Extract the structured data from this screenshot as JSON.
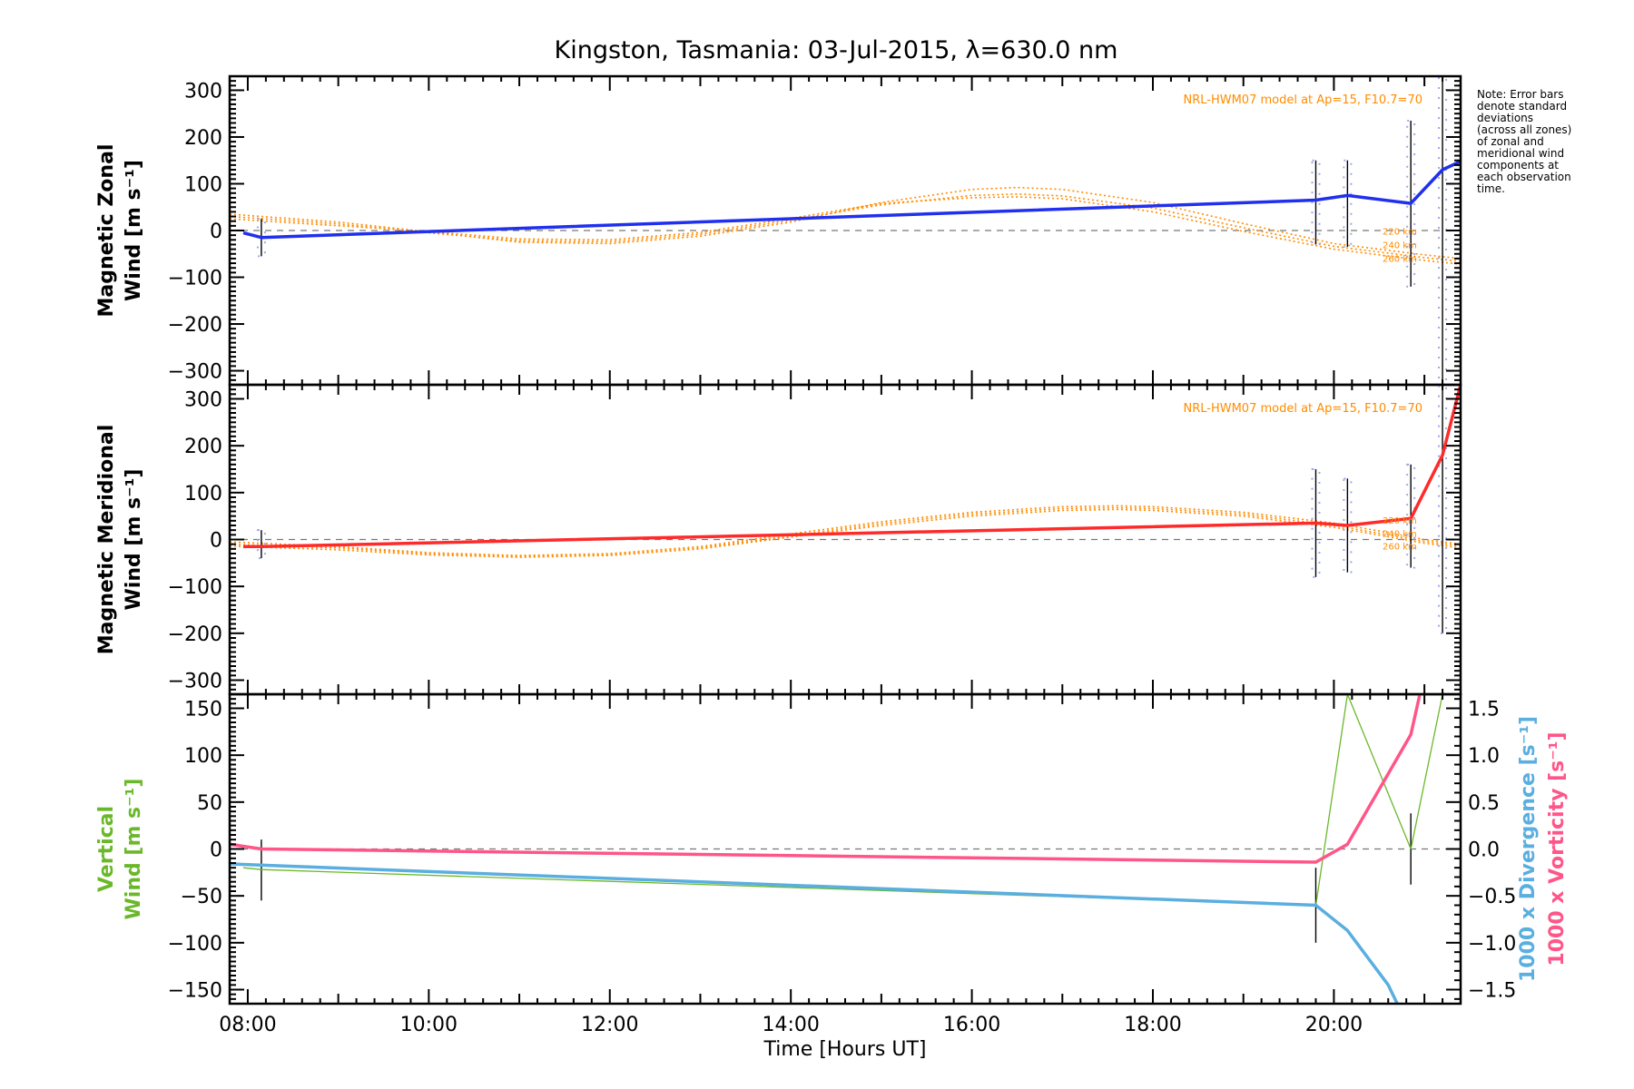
{
  "title": "Kingston, Tasmania: 03-Jul-2015, λ=630.0 nm",
  "note": [
    "Note: Error bars",
    "denote standard",
    "deviations",
    "(across all zones)",
    "of zonal and",
    "meridional wind",
    "components at",
    "each observation",
    "time."
  ],
  "model_label": "NRL-HWM07 model at Ap=15, F10.7=70",
  "altitudes": [
    "220 km",
    "240 km",
    "260 km"
  ],
  "colors": {
    "zonal": "#2030ee",
    "meridional": "#ff2a2a",
    "model": "#ff8c00",
    "vertical": "#6ab82a",
    "divergence": "#5aaee0",
    "vorticity": "#ff5588",
    "errorbar": "#000000",
    "zone_points": "#a0a8e8"
  },
  "chart_data": [
    {
      "type": "line",
      "panel": "zonal",
      "ylabel_lines": [
        "Magnetic Zonal",
        "Wind [m s⁻¹]"
      ],
      "xlim": [
        7.8,
        21.4
      ],
      "ylim": [
        -330,
        330
      ],
      "yticks": [
        -300,
        -200,
        -100,
        0,
        100,
        200,
        300
      ],
      "x": [
        7.95,
        8.15,
        19.8,
        20.15,
        20.85,
        21.2,
        21.4
      ],
      "series": [
        {
          "values": [
            -5,
            -15,
            65,
            75,
            58,
            130,
            148
          ]
        }
      ],
      "errorbars": [
        {
          "x": 8.15,
          "lo": -55,
          "hi": 25
        },
        {
          "x": 19.8,
          "lo": -30,
          "hi": 150
        },
        {
          "x": 20.15,
          "lo": -35,
          "hi": 150
        },
        {
          "x": 20.85,
          "lo": -120,
          "hi": 235
        },
        {
          "x": 21.2,
          "lo": -330,
          "hi": 330
        }
      ],
      "model_curves": {
        "x": [
          7.8,
          9.0,
          10.0,
          11.0,
          12.0,
          13.0,
          14.0,
          15.0,
          16.0,
          16.5,
          17.0,
          18.0,
          19.0,
          20.0,
          21.0,
          21.4
        ],
        "altitudes": [
          [
            35,
            18,
            -3,
            -25,
            -28,
            -12,
            18,
            60,
            88,
            92,
            88,
            60,
            15,
            -28,
            -52,
            -60
          ],
          [
            30,
            14,
            -5,
            -22,
            -24,
            -8,
            22,
            55,
            75,
            78,
            74,
            48,
            6,
            -34,
            -58,
            -66
          ],
          [
            25,
            10,
            -2,
            -18,
            -20,
            -4,
            26,
            58,
            70,
            72,
            68,
            40,
            -2,
            -40,
            -64,
            -72
          ]
        ]
      }
    },
    {
      "type": "line",
      "panel": "meridional",
      "ylabel_lines": [
        "Magnetic Meridional",
        "Wind [m s⁻¹]"
      ],
      "xlim": [
        7.8,
        21.4
      ],
      "ylim": [
        -330,
        330
      ],
      "yticks": [
        -300,
        -200,
        -100,
        0,
        100,
        200,
        300
      ],
      "x": [
        7.95,
        8.15,
        19.8,
        20.15,
        20.85,
        21.2,
        21.4
      ],
      "series": [
        {
          "values": [
            -15,
            -15,
            35,
            30,
            45,
            180,
            330
          ]
        }
      ],
      "errorbars": [
        {
          "x": 8.15,
          "lo": -40,
          "hi": 20
        },
        {
          "x": 19.8,
          "lo": -80,
          "hi": 150
        },
        {
          "x": 20.15,
          "lo": -70,
          "hi": 130
        },
        {
          "x": 20.85,
          "lo": -60,
          "hi": 160
        },
        {
          "x": 21.2,
          "lo": -200,
          "hi": 330
        }
      ],
      "model_curves": {
        "x": [
          7.8,
          9.0,
          10.0,
          11.0,
          12.0,
          13.0,
          14.0,
          15.0,
          16.0,
          17.0,
          17.6,
          18.0,
          19.0,
          20.0,
          20.6,
          21.0,
          21.4
        ],
        "altitudes": [
          [
            -5,
            -15,
            -28,
            -34,
            -30,
            -15,
            12,
            38,
            58,
            70,
            72,
            70,
            58,
            35,
            15,
            0,
            -10
          ],
          [
            -10,
            -18,
            -30,
            -36,
            -32,
            -18,
            8,
            34,
            54,
            66,
            68,
            66,
            54,
            30,
            10,
            -4,
            -14
          ],
          [
            -14,
            -22,
            -33,
            -38,
            -34,
            -20,
            5,
            30,
            50,
            62,
            64,
            62,
            50,
            26,
            6,
            -8,
            -18
          ]
        ]
      }
    },
    {
      "type": "line",
      "panel": "vertical",
      "ylabel_lines": [
        "Vertical",
        "Wind [m s⁻¹]"
      ],
      "y2label_lines": [
        "1000 x Divergence [s⁻¹]",
        "1000 x Vorticity [s⁻¹]"
      ],
      "xlabel": "Time [Hours UT]",
      "xlim": [
        7.8,
        21.4
      ],
      "ylim": [
        -165,
        165
      ],
      "y2lim": [
        -1.65,
        1.65
      ],
      "yticks": [
        -150,
        -100,
        -50,
        0,
        50,
        100,
        150
      ],
      "y2ticks": [
        -1.5,
        -1.0,
        -0.5,
        0.0,
        0.5,
        1.0,
        1.5
      ],
      "y2ticklabels": [
        "−1.5",
        "−1.0",
        "−0.5",
        "0.0",
        "0.5",
        "1.0",
        "1.5"
      ],
      "xticks": [
        8,
        10,
        12,
        14,
        16,
        18,
        20
      ],
      "xticklabels": [
        "08:00",
        "10:00",
        "12:00",
        "14:00",
        "16:00",
        "18:00",
        "20:00"
      ],
      "x": [
        7.95,
        8.15,
        19.8,
        20.15,
        20.85,
        21.2
      ],
      "series": [
        {
          "name": "Vertical Wind",
          "axis": "left",
          "values": [
            -20,
            -22,
            -60,
            165,
            0,
            165
          ]
        },
        {
          "name": "1000 x Divergence",
          "axis": "right",
          "x": [
            7.8,
            19.8,
            20.15,
            20.6,
            20.7
          ],
          "values": [
            -0.16,
            -0.6,
            -0.87,
            -1.45,
            -1.65
          ]
        },
        {
          "name": "1000 x Vorticity",
          "axis": "right",
          "x": [
            7.8,
            8.15,
            19.8,
            20.15,
            20.85,
            20.95
          ],
          "values": [
            0.05,
            0.0,
            -0.14,
            0.05,
            1.22,
            1.65
          ]
        }
      ],
      "errorbars": [
        {
          "x": 8.15,
          "lo": -55,
          "hi": 10
        },
        {
          "x": 19.8,
          "lo": -100,
          "hi": -20
        },
        {
          "x": 20.85,
          "lo": -38,
          "hi": 38
        }
      ]
    }
  ]
}
